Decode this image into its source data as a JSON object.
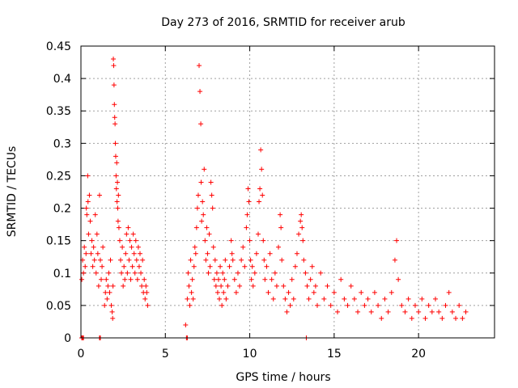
{
  "chart_data": {
    "type": "scatter",
    "title": "Day 273 of 2016, SRMTID for receiver arub",
    "xlabel": "GPS time / hours",
    "ylabel": "SRMTID / TECUs",
    "xlim": [
      0,
      24.5
    ],
    "ylim": [
      0,
      0.45
    ],
    "xticks": [
      0,
      5,
      10,
      15,
      20
    ],
    "xtick_labels": [
      "0",
      "5",
      "10",
      "15",
      "20"
    ],
    "yticks": [
      0,
      0.05,
      0.1,
      0.15,
      0.2,
      0.25,
      0.3,
      0.35,
      0.4,
      0.45
    ],
    "ytick_labels": [
      "0",
      "0.05",
      "0.1",
      "0.15",
      "0.2",
      "0.25",
      "0.3",
      "0.35",
      "0.4",
      "0.45"
    ],
    "grid": true,
    "legend": "none",
    "marker": "plus",
    "series": [
      {
        "color": "#ff0000",
        "points": [
          [
            0.05,
            0.0
          ],
          [
            0.1,
            0.0
          ],
          [
            0.15,
            0.0
          ],
          [
            1.1,
            0.0
          ],
          [
            1.15,
            0.0
          ],
          [
            6.25,
            0.0
          ],
          [
            6.3,
            0.0
          ],
          [
            13.35,
            0.0
          ],
          [
            0.05,
            0.09
          ],
          [
            0.1,
            0.12
          ],
          [
            0.15,
            0.1
          ],
          [
            0.2,
            0.14
          ],
          [
            0.25,
            0.11
          ],
          [
            0.3,
            0.13
          ],
          [
            0.32,
            0.2
          ],
          [
            0.35,
            0.19
          ],
          [
            0.4,
            0.25
          ],
          [
            0.42,
            0.21
          ],
          [
            0.45,
            0.16
          ],
          [
            0.5,
            0.22
          ],
          [
            0.55,
            0.18
          ],
          [
            0.6,
            0.13
          ],
          [
            0.65,
            0.15
          ],
          [
            0.7,
            0.11
          ],
          [
            0.75,
            0.14
          ],
          [
            0.8,
            0.12
          ],
          [
            0.85,
            0.19
          ],
          [
            0.9,
            0.1
          ],
          [
            0.95,
            0.16
          ],
          [
            1.0,
            0.13
          ],
          [
            1.05,
            0.08
          ],
          [
            1.1,
            0.22
          ],
          [
            1.15,
            0.12
          ],
          [
            1.2,
            0.09
          ],
          [
            1.25,
            0.11
          ],
          [
            1.3,
            0.14
          ],
          [
            1.4,
            0.05
          ],
          [
            1.45,
            0.07
          ],
          [
            1.5,
            0.09
          ],
          [
            1.55,
            0.06
          ],
          [
            1.6,
            0.08
          ],
          [
            1.65,
            0.1
          ],
          [
            1.7,
            0.07
          ],
          [
            1.75,
            0.12
          ],
          [
            1.8,
            0.05
          ],
          [
            1.85,
            0.04
          ],
          [
            1.88,
            0.03
          ],
          [
            1.9,
            0.08
          ],
          [
            1.92,
            0.43
          ],
          [
            1.94,
            0.42
          ],
          [
            1.96,
            0.39
          ],
          [
            1.98,
            0.36
          ],
          [
            2.0,
            0.34
          ],
          [
            2.02,
            0.33
          ],
          [
            2.04,
            0.3
          ],
          [
            2.06,
            0.28
          ],
          [
            2.08,
            0.25
          ],
          [
            2.1,
            0.23
          ],
          [
            2.12,
            0.27
          ],
          [
            2.14,
            0.21
          ],
          [
            2.16,
            0.24
          ],
          [
            2.18,
            0.2
          ],
          [
            2.2,
            0.18
          ],
          [
            2.22,
            0.22
          ],
          [
            2.25,
            0.17
          ],
          [
            2.3,
            0.15
          ],
          [
            2.35,
            0.12
          ],
          [
            2.4,
            0.1
          ],
          [
            2.45,
            0.14
          ],
          [
            2.5,
            0.08
          ],
          [
            2.55,
            0.11
          ],
          [
            2.6,
            0.09
          ],
          [
            2.65,
            0.13
          ],
          [
            2.7,
            0.16
          ],
          [
            2.75,
            0.1
          ],
          [
            2.8,
            0.17
          ],
          [
            2.85,
            0.12
          ],
          [
            2.9,
            0.15
          ],
          [
            2.95,
            0.09
          ],
          [
            3.0,
            0.14
          ],
          [
            3.05,
            0.11
          ],
          [
            3.1,
            0.16
          ],
          [
            3.15,
            0.13
          ],
          [
            3.2,
            0.1
          ],
          [
            3.25,
            0.15
          ],
          [
            3.3,
            0.12
          ],
          [
            3.35,
            0.09
          ],
          [
            3.4,
            0.14
          ],
          [
            3.45,
            0.11
          ],
          [
            3.5,
            0.13
          ],
          [
            3.55,
            0.1
          ],
          [
            3.6,
            0.08
          ],
          [
            3.65,
            0.12
          ],
          [
            3.7,
            0.07
          ],
          [
            3.75,
            0.09
          ],
          [
            3.8,
            0.06
          ],
          [
            3.85,
            0.08
          ],
          [
            3.9,
            0.07
          ],
          [
            3.95,
            0.05
          ],
          [
            6.2,
            0.02
          ],
          [
            6.3,
            0.06
          ],
          [
            6.35,
            0.1
          ],
          [
            6.4,
            0.08
          ],
          [
            6.45,
            0.05
          ],
          [
            6.5,
            0.12
          ],
          [
            6.55,
            0.07
          ],
          [
            6.6,
            0.09
          ],
          [
            6.65,
            0.06
          ],
          [
            6.7,
            0.11
          ],
          [
            6.75,
            0.14
          ],
          [
            6.8,
            0.13
          ],
          [
            6.85,
            0.17
          ],
          [
            6.9,
            0.2
          ],
          [
            6.95,
            0.22
          ],
          [
            7.0,
            0.42
          ],
          [
            7.05,
            0.38
          ],
          [
            7.1,
            0.33
          ],
          [
            7.12,
            0.24
          ],
          [
            7.15,
            0.18
          ],
          [
            7.2,
            0.21
          ],
          [
            7.25,
            0.19
          ],
          [
            7.3,
            0.26
          ],
          [
            7.35,
            0.15
          ],
          [
            7.4,
            0.12
          ],
          [
            7.45,
            0.17
          ],
          [
            7.5,
            0.13
          ],
          [
            7.55,
            0.1
          ],
          [
            7.6,
            0.16
          ],
          [
            7.65,
            0.11
          ],
          [
            7.7,
            0.24
          ],
          [
            7.75,
            0.22
          ],
          [
            7.8,
            0.2
          ],
          [
            7.85,
            0.14
          ],
          [
            7.9,
            0.09
          ],
          [
            7.95,
            0.12
          ],
          [
            8.0,
            0.08
          ],
          [
            8.05,
            0.1
          ],
          [
            8.1,
            0.07
          ],
          [
            8.15,
            0.09
          ],
          [
            8.2,
            0.06
          ],
          [
            8.25,
            0.11
          ],
          [
            8.3,
            0.08
          ],
          [
            8.35,
            0.05
          ],
          [
            8.4,
            0.1
          ],
          [
            8.45,
            0.07
          ],
          [
            8.5,
            0.09
          ],
          [
            8.55,
            0.12
          ],
          [
            8.6,
            0.06
          ],
          [
            8.7,
            0.08
          ],
          [
            8.8,
            0.11
          ],
          [
            8.9,
            0.15
          ],
          [
            8.95,
            0.13
          ],
          [
            9.0,
            0.12
          ],
          [
            9.1,
            0.09
          ],
          [
            9.2,
            0.07
          ],
          [
            9.3,
            0.1
          ],
          [
            9.4,
            0.08
          ],
          [
            9.5,
            0.12
          ],
          [
            9.6,
            0.14
          ],
          [
            9.7,
            0.11
          ],
          [
            9.8,
            0.17
          ],
          [
            9.85,
            0.19
          ],
          [
            9.9,
            0.23
          ],
          [
            9.95,
            0.21
          ],
          [
            10.0,
            0.15
          ],
          [
            10.05,
            0.12
          ],
          [
            10.1,
            0.09
          ],
          [
            10.15,
            0.11
          ],
          [
            10.2,
            0.08
          ],
          [
            10.3,
            0.1
          ],
          [
            10.4,
            0.13
          ],
          [
            10.5,
            0.16
          ],
          [
            10.55,
            0.21
          ],
          [
            10.6,
            0.23
          ],
          [
            10.65,
            0.29
          ],
          [
            10.7,
            0.26
          ],
          [
            10.75,
            0.22
          ],
          [
            10.8,
            0.15
          ],
          [
            10.85,
            0.12
          ],
          [
            10.9,
            0.09
          ],
          [
            11.0,
            0.11
          ],
          [
            11.1,
            0.07
          ],
          [
            11.2,
            0.13
          ],
          [
            11.3,
            0.09
          ],
          [
            11.4,
            0.06
          ],
          [
            11.5,
            0.1
          ],
          [
            11.6,
            0.08
          ],
          [
            11.7,
            0.14
          ],
          [
            11.8,
            0.19
          ],
          [
            11.85,
            0.17
          ],
          [
            11.9,
            0.12
          ],
          [
            12.0,
            0.08
          ],
          [
            12.1,
            0.06
          ],
          [
            12.2,
            0.04
          ],
          [
            12.3,
            0.07
          ],
          [
            12.4,
            0.05
          ],
          [
            12.5,
            0.09
          ],
          [
            12.6,
            0.06
          ],
          [
            12.7,
            0.11
          ],
          [
            12.8,
            0.13
          ],
          [
            12.9,
            0.16
          ],
          [
            13.0,
            0.18
          ],
          [
            13.05,
            0.19
          ],
          [
            13.1,
            0.17
          ],
          [
            13.15,
            0.15
          ],
          [
            13.2,
            0.12
          ],
          [
            13.3,
            0.1
          ],
          [
            13.4,
            0.08
          ],
          [
            13.5,
            0.06
          ],
          [
            13.6,
            0.09
          ],
          [
            13.7,
            0.11
          ],
          [
            13.8,
            0.07
          ],
          [
            13.9,
            0.08
          ],
          [
            14.0,
            0.05
          ],
          [
            14.2,
            0.1
          ],
          [
            14.4,
            0.06
          ],
          [
            14.6,
            0.08
          ],
          [
            14.8,
            0.05
          ],
          [
            15.0,
            0.07
          ],
          [
            15.2,
            0.04
          ],
          [
            15.4,
            0.09
          ],
          [
            15.6,
            0.06
          ],
          [
            15.8,
            0.05
          ],
          [
            16.0,
            0.08
          ],
          [
            16.2,
            0.06
          ],
          [
            16.4,
            0.04
          ],
          [
            16.6,
            0.07
          ],
          [
            16.8,
            0.05
          ],
          [
            17.0,
            0.06
          ],
          [
            17.2,
            0.04
          ],
          [
            17.4,
            0.07
          ],
          [
            17.6,
            0.05
          ],
          [
            17.8,
            0.03
          ],
          [
            18.0,
            0.06
          ],
          [
            18.2,
            0.04
          ],
          [
            18.4,
            0.07
          ],
          [
            18.6,
            0.12
          ],
          [
            18.7,
            0.15
          ],
          [
            18.8,
            0.09
          ],
          [
            19.0,
            0.05
          ],
          [
            19.2,
            0.04
          ],
          [
            19.4,
            0.06
          ],
          [
            19.6,
            0.03
          ],
          [
            19.8,
            0.05
          ],
          [
            20.0,
            0.04
          ],
          [
            20.2,
            0.06
          ],
          [
            20.4,
            0.03
          ],
          [
            20.6,
            0.05
          ],
          [
            20.8,
            0.04
          ],
          [
            21.0,
            0.06
          ],
          [
            21.2,
            0.04
          ],
          [
            21.4,
            0.03
          ],
          [
            21.6,
            0.05
          ],
          [
            21.8,
            0.07
          ],
          [
            22.0,
            0.04
          ],
          [
            22.2,
            0.03
          ],
          [
            22.4,
            0.05
          ],
          [
            22.6,
            0.03
          ],
          [
            22.8,
            0.04
          ]
        ]
      }
    ]
  }
}
